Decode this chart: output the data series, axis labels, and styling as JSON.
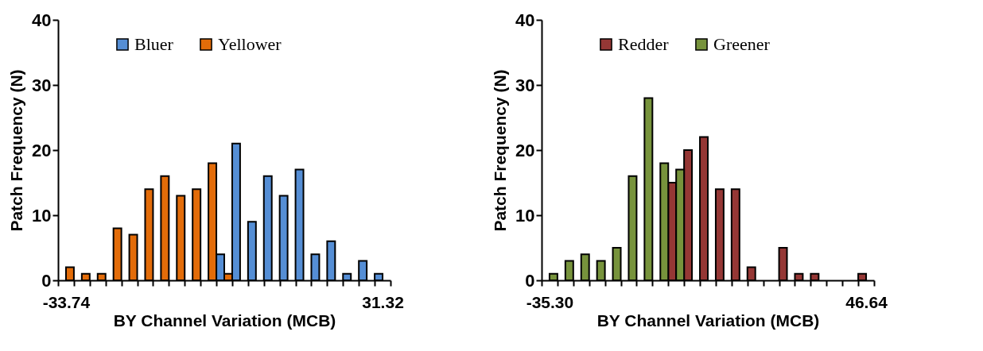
{
  "chart_data": [
    {
      "type": "bar",
      "xlabel": "BY Channel Variation (MCB)",
      "ylabel": "Patch Frequency (N)",
      "categories": [
        "-33.74",
        null,
        null,
        null,
        null,
        null,
        null,
        null,
        null,
        null,
        null,
        null,
        null,
        null,
        null,
        null,
        null,
        null,
        null,
        null,
        "31.32"
      ],
      "ylim": [
        0,
        40
      ],
      "yticks": [
        0,
        10,
        20,
        30,
        40
      ],
      "grid": false,
      "legend": "top",
      "series": [
        {
          "name": "Bluer",
          "color": "#558ed5",
          "values": [
            0,
            0,
            0,
            0,
            0,
            0,
            0,
            0,
            0,
            0,
            4,
            21,
            9,
            16,
            13,
            17,
            4,
            6,
            1,
            3,
            1
          ]
        },
        {
          "name": "Yellower",
          "color": "#e36c09",
          "values": [
            2,
            1,
            1,
            8,
            7,
            14,
            16,
            13,
            14,
            18,
            1,
            0,
            0,
            0,
            0,
            0,
            0,
            0,
            0,
            0,
            0
          ]
        }
      ]
    },
    {
      "type": "bar",
      "xlabel": "BY Channel Variation (MCB)",
      "ylabel": "Patch Frequency (N)",
      "categories": [
        "-35.30",
        null,
        null,
        null,
        null,
        null,
        null,
        null,
        null,
        null,
        null,
        null,
        null,
        null,
        null,
        null,
        null,
        null,
        null,
        null,
        "46.64"
      ],
      "ylim": [
        0,
        40
      ],
      "yticks": [
        0,
        10,
        20,
        30,
        40
      ],
      "grid": false,
      "legend": "top",
      "series": [
        {
          "name": "Redder",
          "color": "#953735",
          "values": [
            0,
            0,
            0,
            0,
            0,
            0,
            0,
            0,
            15,
            20,
            22,
            14,
            14,
            2,
            0,
            5,
            1,
            1,
            0,
            0,
            1
          ]
        },
        {
          "name": "Greener",
          "color": "#77933c",
          "values": [
            1,
            3,
            4,
            3,
            5,
            16,
            28,
            18,
            17,
            0,
            0,
            0,
            0,
            0,
            0,
            0,
            0,
            0,
            0,
            0,
            0
          ]
        }
      ]
    }
  ]
}
